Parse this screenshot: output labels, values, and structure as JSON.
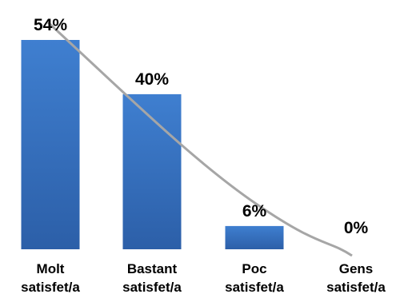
{
  "chart_data": {
    "type": "bar",
    "categories": [
      [
        "Molt",
        "satisfet/a"
      ],
      [
        "Bastant",
        "satisfet/a"
      ],
      [
        "Poc",
        "satisfet/a"
      ],
      [
        "Gens",
        "satisfet/a"
      ]
    ],
    "values": [
      54,
      40,
      6,
      0
    ],
    "data_labels": [
      "54%",
      "40%",
      "6%",
      "0%"
    ],
    "unit": "%",
    "title": "",
    "xlabel": "",
    "ylabel": "",
    "ylim": [
      0,
      54
    ],
    "grid": false,
    "legend": "none",
    "trendline": {
      "type": "curve",
      "color": "#a6a6a6"
    },
    "colors": {
      "bar_top": "#3f7fd0",
      "bar_bottom": "#2c5fa8",
      "trend": "#a6a6a6",
      "text": "#000000"
    }
  }
}
